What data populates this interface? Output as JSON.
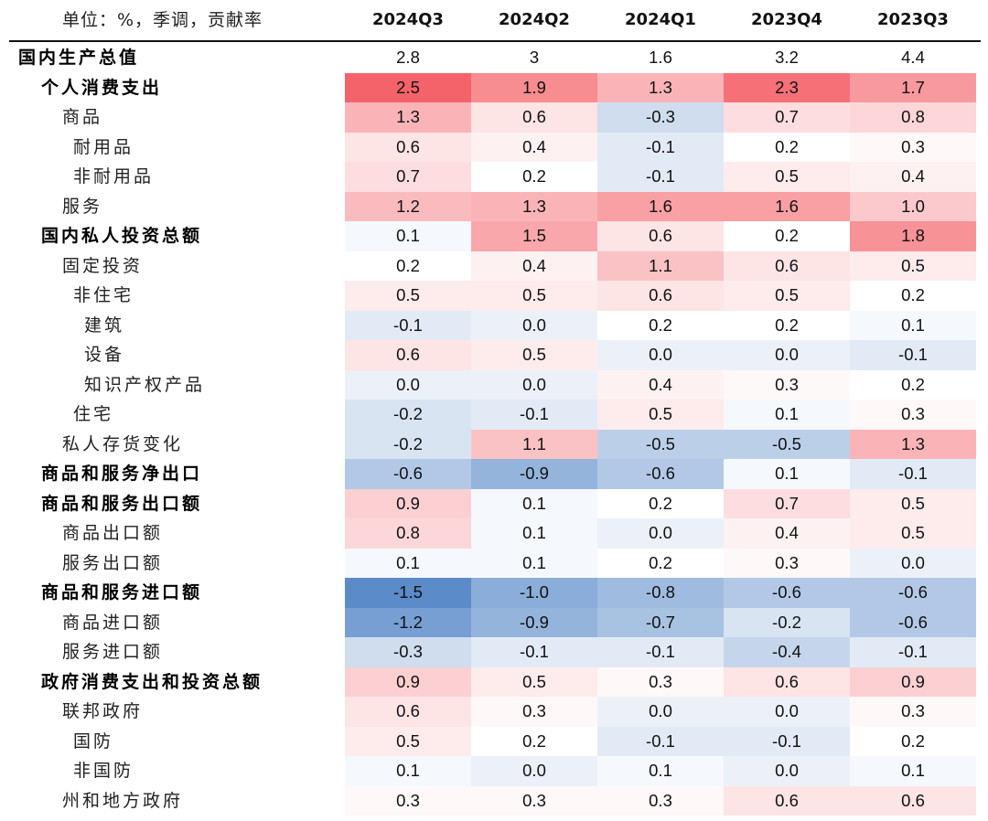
{
  "unit_label": "单位：%，季调，贡献率",
  "chart_data": {
    "type": "heatmap",
    "title": "",
    "color_scale": {
      "positive": "#f4636a",
      "zero": "#ffffff",
      "negative": "#5b8bc9"
    },
    "columns": [
      "2024Q3",
      "2024Q2",
      "2024Q1",
      "2023Q4",
      "2023Q3"
    ],
    "rows": [
      {
        "label": "国内生产总值",
        "level": 0,
        "bold": true,
        "colored": false,
        "values": [
          "2.8",
          "3",
          "1.6",
          "3.2",
          "4.4"
        ]
      },
      {
        "label": "个人消费支出",
        "level": 1,
        "bold": true,
        "colored": true,
        "values": [
          "2.5",
          "1.9",
          "1.3",
          "2.3",
          "1.7"
        ]
      },
      {
        "label": "商品",
        "level": 2,
        "bold": false,
        "colored": true,
        "values": [
          "1.3",
          "0.6",
          "-0.3",
          "0.7",
          "0.8"
        ]
      },
      {
        "label": "耐用品",
        "level": 3,
        "bold": false,
        "colored": true,
        "values": [
          "0.6",
          "0.4",
          "-0.1",
          "0.2",
          "0.3"
        ]
      },
      {
        "label": "非耐用品",
        "level": 3,
        "bold": false,
        "colored": true,
        "values": [
          "0.7",
          "0.2",
          "-0.1",
          "0.5",
          "0.4"
        ]
      },
      {
        "label": "服务",
        "level": 2,
        "bold": false,
        "colored": true,
        "values": [
          "1.2",
          "1.3",
          "1.6",
          "1.6",
          "1.0"
        ]
      },
      {
        "label": "国内私人投资总额",
        "level": 1,
        "bold": true,
        "colored": true,
        "values": [
          "0.1",
          "1.5",
          "0.6",
          "0.2",
          "1.8"
        ]
      },
      {
        "label": "固定投资",
        "level": 2,
        "bold": false,
        "colored": true,
        "values": [
          "0.2",
          "0.4",
          "1.1",
          "0.6",
          "0.5"
        ]
      },
      {
        "label": "非住宅",
        "level": 3,
        "bold": false,
        "colored": true,
        "values": [
          "0.5",
          "0.5",
          "0.6",
          "0.5",
          "0.2"
        ]
      },
      {
        "label": "建筑",
        "level": 4,
        "bold": false,
        "colored": true,
        "values": [
          "-0.1",
          "0.0",
          "0.2",
          "0.2",
          "0.1"
        ]
      },
      {
        "label": "设备",
        "level": 4,
        "bold": false,
        "colored": true,
        "values": [
          "0.6",
          "0.5",
          "0.0",
          "0.0",
          "-0.1"
        ]
      },
      {
        "label": "知识产权产品",
        "level": 4,
        "bold": false,
        "colored": true,
        "values": [
          "0.0",
          "0.0",
          "0.4",
          "0.3",
          "0.2"
        ]
      },
      {
        "label": "住宅",
        "level": 3,
        "bold": false,
        "colored": true,
        "values": [
          "-0.2",
          "-0.1",
          "0.5",
          "0.1",
          "0.3"
        ]
      },
      {
        "label": "私人存货变化",
        "level": 2,
        "bold": false,
        "colored": true,
        "values": [
          "-0.2",
          "1.1",
          "-0.5",
          "-0.5",
          "1.3"
        ]
      },
      {
        "label": "商品和服务净出口",
        "level": 1,
        "bold": true,
        "colored": true,
        "values": [
          "-0.6",
          "-0.9",
          "-0.6",
          "0.1",
          "-0.1"
        ]
      },
      {
        "label": "商品和服务出口额",
        "level": 1,
        "bold": true,
        "colored": true,
        "values": [
          "0.9",
          "0.1",
          "0.2",
          "0.7",
          "0.5"
        ]
      },
      {
        "label": "商品出口额",
        "level": 2,
        "bold": false,
        "colored": true,
        "values": [
          "0.8",
          "0.1",
          "0.0",
          "0.4",
          "0.5"
        ]
      },
      {
        "label": "服务出口额",
        "level": 2,
        "bold": false,
        "colored": true,
        "values": [
          "0.1",
          "0.1",
          "0.2",
          "0.3",
          "0.0"
        ]
      },
      {
        "label": "商品和服务进口额",
        "level": 1,
        "bold": true,
        "colored": true,
        "values": [
          "-1.5",
          "-1.0",
          "-0.8",
          "-0.6",
          "-0.6"
        ]
      },
      {
        "label": "商品进口额",
        "level": 2,
        "bold": false,
        "colored": true,
        "values": [
          "-1.2",
          "-0.9",
          "-0.7",
          "-0.2",
          "-0.6"
        ]
      },
      {
        "label": "服务进口额",
        "level": 2,
        "bold": false,
        "colored": true,
        "values": [
          "-0.3",
          "-0.1",
          "-0.1",
          "-0.4",
          "-0.1"
        ]
      },
      {
        "label": "政府消费支出和投资总额",
        "level": 1,
        "bold": true,
        "colored": true,
        "values": [
          "0.9",
          "0.5",
          "0.3",
          "0.6",
          "0.9"
        ]
      },
      {
        "label": "联邦政府",
        "level": 2,
        "bold": false,
        "colored": true,
        "values": [
          "0.6",
          "0.3",
          "0.0",
          "0.0",
          "0.3"
        ]
      },
      {
        "label": "国防",
        "level": 3,
        "bold": false,
        "colored": true,
        "values": [
          "0.5",
          "0.2",
          "-0.1",
          "-0.1",
          "0.2"
        ]
      },
      {
        "label": "非国防",
        "level": 3,
        "bold": false,
        "colored": true,
        "values": [
          "0.1",
          "0.0",
          "0.1",
          "0.0",
          "0.1"
        ]
      },
      {
        "label": "州和地方政府",
        "level": 2,
        "bold": false,
        "colored": true,
        "values": [
          "0.3",
          "0.3",
          "0.3",
          "0.6",
          "0.6"
        ]
      }
    ]
  }
}
